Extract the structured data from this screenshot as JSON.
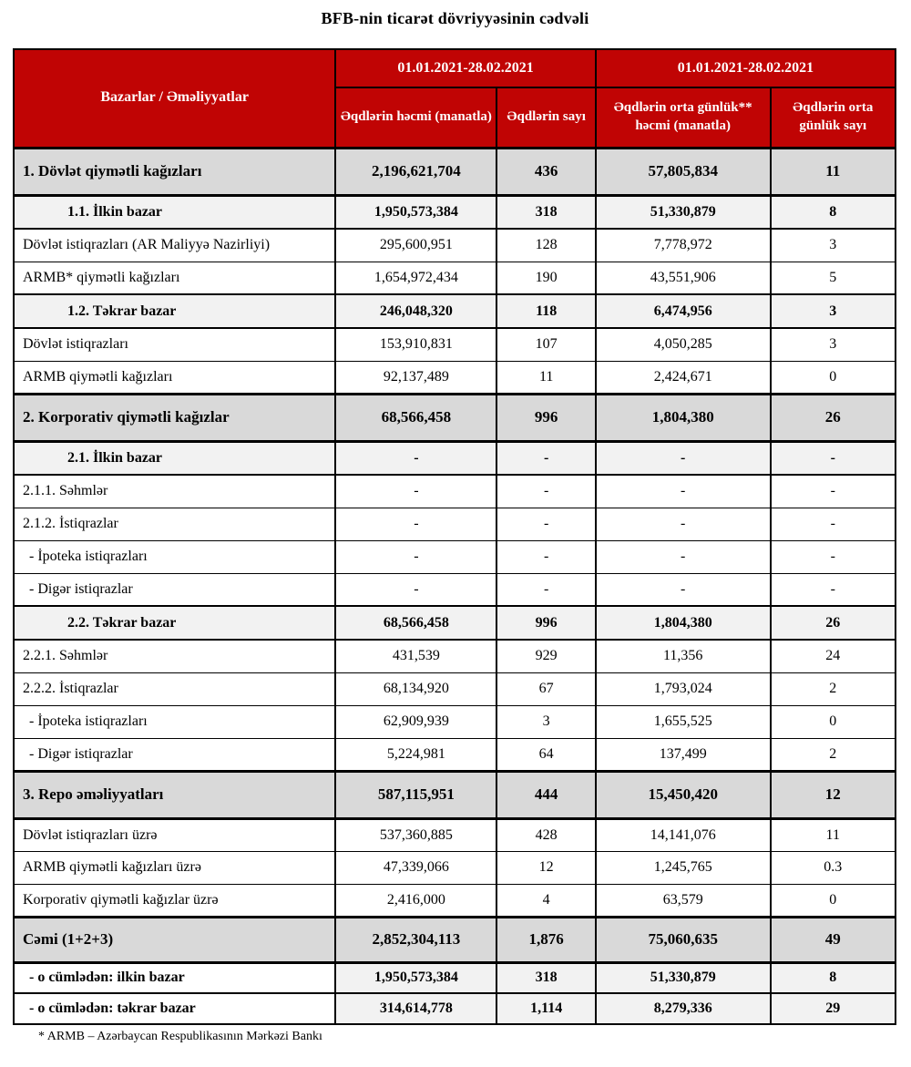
{
  "title": "BFB-nin ticarət dövriyyəsinin cədvəli",
  "colors": {
    "header_bg": "#c00404",
    "header_text": "#ffffff",
    "section_row_bg": "#d9d9d9",
    "subsection_row_bg": "#f2f2f2",
    "border": "#000000"
  },
  "table": {
    "header": {
      "markets_label": "Bazarlar / Əməliyyatlar",
      "period1": "01.01.2021-28.02.2021",
      "period2": "01.01.2021-28.02.2021",
      "col_volume": "Əqdlərin həcmi (manatla)",
      "col_count": "Əqdlərin sayı",
      "col_avg_volume": "Əqdlərin orta günlük** həcmi (manatla)",
      "col_avg_count": "Əqdlərin orta günlük sayı"
    },
    "rows": [
      {
        "label": "1. Dövlət qiymətli kağızları",
        "style": "section",
        "values": [
          "2,196,621,704",
          "436",
          "57,805,834",
          "11"
        ]
      },
      {
        "label": "1.1. İlkin bazar",
        "style": "subsection",
        "values": [
          "1,950,573,384",
          "318",
          "51,330,879",
          "8"
        ]
      },
      {
        "label": "Dövlət istiqrazları (AR Maliyyə Nazirliyi)",
        "style": "plain",
        "values": [
          "295,600,951",
          "128",
          "7,778,972",
          "3"
        ]
      },
      {
        "label": "ARMB* qiymətli kağızları",
        "style": "plain",
        "values": [
          "1,654,972,434",
          "190",
          "43,551,906",
          "5"
        ]
      },
      {
        "label": "1.2. Təkrar bazar",
        "style": "subsection",
        "values": [
          "246,048,320",
          "118",
          "6,474,956",
          "3"
        ]
      },
      {
        "label": "Dövlət istiqrazları",
        "style": "plain",
        "values": [
          "153,910,831",
          "107",
          "4,050,285",
          "3"
        ]
      },
      {
        "label": "ARMB qiymətli kağızları",
        "style": "plain",
        "values": [
          "92,137,489",
          "11",
          "2,424,671",
          "0"
        ]
      },
      {
        "label": "2. Korporativ qiymətli kağızlar",
        "style": "section",
        "values": [
          "68,566,458",
          "996",
          "1,804,380",
          "26"
        ]
      },
      {
        "label": "2.1. İlkin bazar",
        "style": "subsection",
        "values": [
          "-",
          "-",
          "-",
          "-"
        ]
      },
      {
        "label": "2.1.1. Səhmlər",
        "style": "plain",
        "values": [
          "-",
          "-",
          "-",
          "-"
        ]
      },
      {
        "label": "2.1.2. İstiqrazlar",
        "style": "plain",
        "values": [
          "-",
          "-",
          "-",
          "-"
        ]
      },
      {
        "label": "- İpoteka istiqrazları",
        "style": "dash",
        "values": [
          "-",
          "-",
          "-",
          "-"
        ]
      },
      {
        "label": "- Digər istiqrazlar",
        "style": "dash",
        "values": [
          "-",
          "-",
          "-",
          "-"
        ]
      },
      {
        "label": "2.2. Təkrar bazar",
        "style": "subsection",
        "values": [
          "68,566,458",
          "996",
          "1,804,380",
          "26"
        ]
      },
      {
        "label": "2.2.1. Səhmlər",
        "style": "plain",
        "values": [
          "431,539",
          "929",
          "11,356",
          "24"
        ]
      },
      {
        "label": "2.2.2. İstiqrazlar",
        "style": "plain",
        "values": [
          "68,134,920",
          "67",
          "1,793,024",
          "2"
        ]
      },
      {
        "label": "- İpoteka istiqrazları",
        "style": "dash",
        "values": [
          "62,909,939",
          "3",
          "1,655,525",
          "0"
        ]
      },
      {
        "label": "- Digər istiqrazlar",
        "style": "dash",
        "values": [
          "5,224,981",
          "64",
          "137,499",
          "2"
        ]
      },
      {
        "label": "3. Repo əməliyyatları",
        "style": "section",
        "values": [
          "587,115,951",
          "444",
          "15,450,420",
          "12"
        ]
      },
      {
        "label": "Dövlət istiqrazları üzrə",
        "style": "plain",
        "values": [
          "537,360,885",
          "428",
          "14,141,076",
          "11"
        ]
      },
      {
        "label": "ARMB qiymətli kağızları üzrə",
        "style": "plain",
        "values": [
          "47,339,066",
          "12",
          "1,245,765",
          "0.3"
        ]
      },
      {
        "label": "Korporativ qiymətli kağızlar üzrə",
        "style": "plain",
        "values": [
          "2,416,000",
          "4",
          "63,579",
          "0"
        ]
      },
      {
        "label": "Cəmi (1+2+3)",
        "style": "total",
        "values": [
          "2,852,304,113",
          "1,876",
          "75,060,635",
          "49"
        ]
      },
      {
        "label": "- o cümlədən: ilkin bazar",
        "style": "subtotal",
        "values": [
          "1,950,573,384",
          "318",
          "51,330,879",
          "8"
        ]
      },
      {
        "label": "- o cümlədən: təkrar bazar",
        "style": "subtotal",
        "values": [
          "314,614,778",
          "1,114",
          "8,279,336",
          "29"
        ]
      }
    ]
  },
  "footnote": "* ARMB – Azərbaycan Respublikasının Mərkəzi Bankı"
}
